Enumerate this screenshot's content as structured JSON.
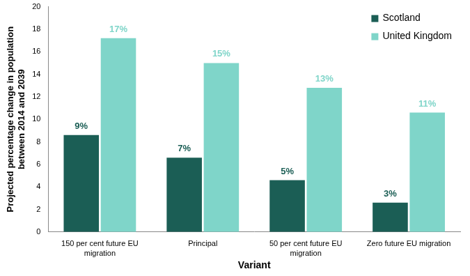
{
  "chart_data": {
    "type": "bar",
    "x_label": "Variant",
    "y_label": "Projected percentage change in population between 2014 and 2039",
    "categories": [
      "150 per cent future EU migration",
      "Principal",
      "50 per cent future EU migration",
      "Zero future EU migration"
    ],
    "series": [
      {
        "name": "Scotland",
        "color": "#1b5e55",
        "values": [
          8.6,
          6.6,
          4.6,
          2.6
        ],
        "value_labels": [
          "9%",
          "7%",
          "5%",
          "3%"
        ]
      },
      {
        "name": "United Kingdom",
        "color": "#7fd5c9",
        "values": [
          17.2,
          15.0,
          12.8,
          10.6
        ],
        "value_labels": [
          "17%",
          "15%",
          "13%",
          "11%"
        ]
      }
    ],
    "ylim": [
      0,
      20
    ],
    "yticks": [
      0,
      2,
      4,
      6,
      8,
      10,
      12,
      14,
      16,
      18,
      20
    ],
    "grid": false,
    "legend": "top right",
    "data_labels": true
  }
}
